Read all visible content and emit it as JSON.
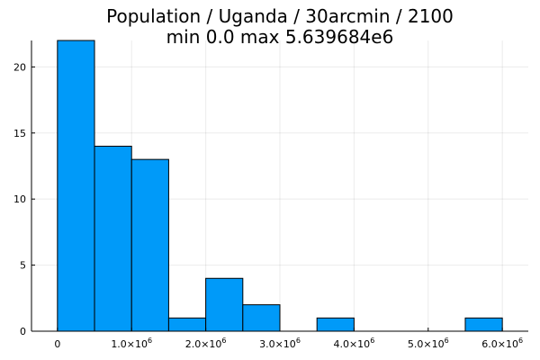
{
  "chart_data": {
    "type": "bar",
    "title_line1": "Population / Uganda / 30arcmin / 2100",
    "title_line2": "min 0.0  max 5.639684e6",
    "bin_width": 500000,
    "bins": [
      {
        "start": 0,
        "end": 500000,
        "count": 22
      },
      {
        "start": 500000,
        "end": 1000000,
        "count": 14
      },
      {
        "start": 1000000,
        "end": 1500000,
        "count": 13
      },
      {
        "start": 1500000,
        "end": 2000000,
        "count": 1
      },
      {
        "start": 2000000,
        "end": 2500000,
        "count": 4
      },
      {
        "start": 2500000,
        "end": 3000000,
        "count": 2
      },
      {
        "start": 3500000,
        "end": 4000000,
        "count": 1
      },
      {
        "start": 5500000,
        "end": 6000000,
        "count": 1
      }
    ],
    "xlim": [
      -350000,
      6350000
    ],
    "ylim": [
      0,
      22
    ],
    "x_ticks": [
      {
        "value": 0,
        "mantissa": "0",
        "exponent": ""
      },
      {
        "value": 1000000,
        "mantissa": "1.0×10",
        "exponent": "6"
      },
      {
        "value": 2000000,
        "mantissa": "2.0×10",
        "exponent": "6"
      },
      {
        "value": 3000000,
        "mantissa": "3.0×10",
        "exponent": "6"
      },
      {
        "value": 4000000,
        "mantissa": "4.0×10",
        "exponent": "6"
      },
      {
        "value": 5000000,
        "mantissa": "5.0×10",
        "exponent": "6"
      },
      {
        "value": 6000000,
        "mantissa": "6.0×10",
        "exponent": "6"
      }
    ],
    "y_ticks": [
      {
        "value": 0,
        "label": "0"
      },
      {
        "value": 5,
        "label": "5"
      },
      {
        "value": 10,
        "label": "10"
      },
      {
        "value": 15,
        "label": "15"
      },
      {
        "value": 20,
        "label": "20"
      }
    ],
    "grid": true,
    "legend": false,
    "bar_color": "#009af9"
  }
}
